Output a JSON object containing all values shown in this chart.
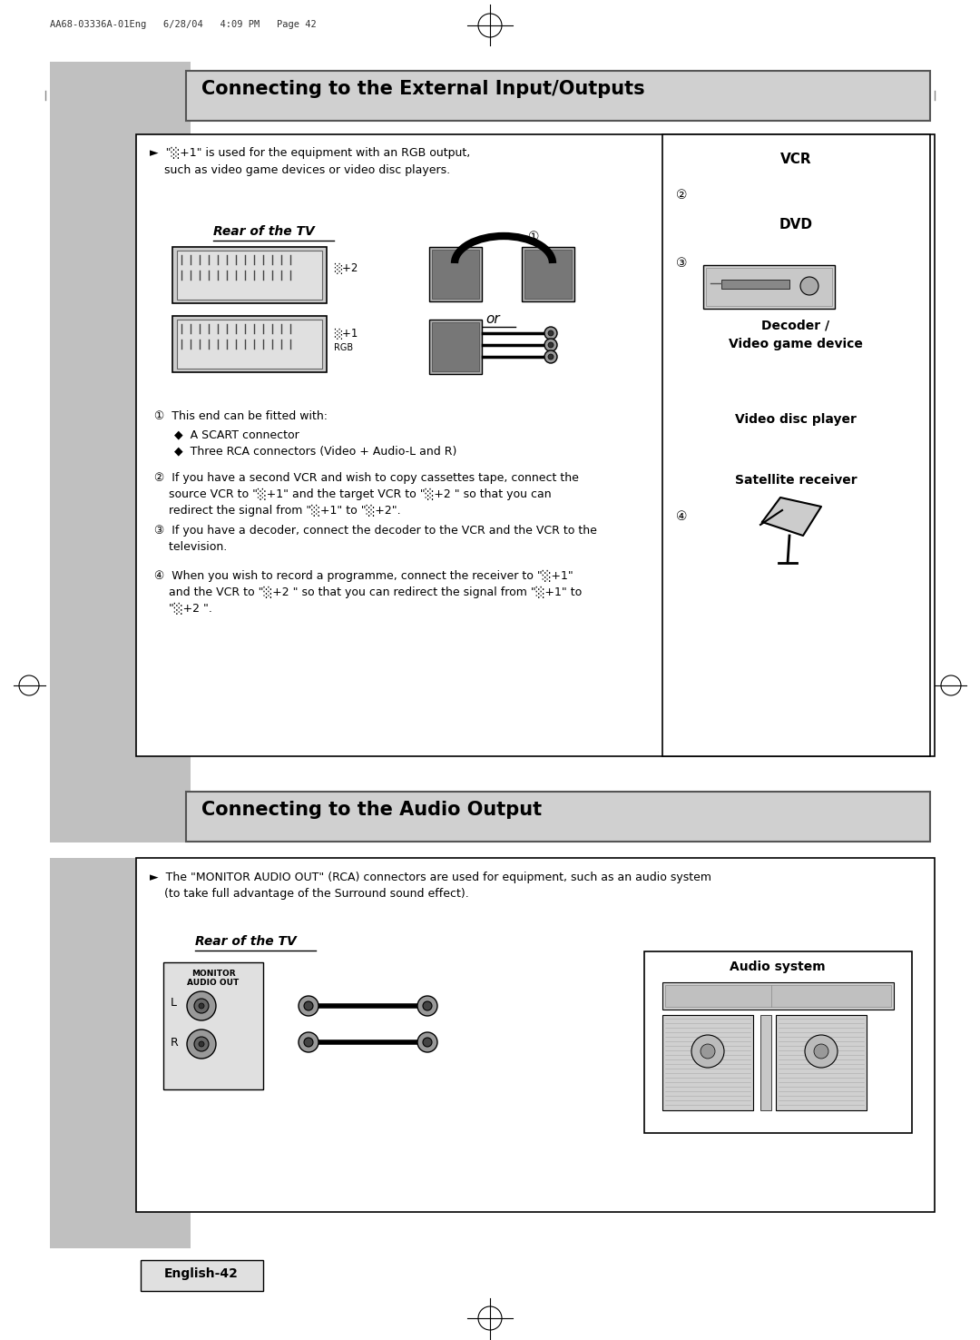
{
  "page_header": "AA68-03336A-01Eng   6/28/04   4:09 PM   Page 42",
  "title1": "Connecting to the External Input/Outputs",
  "title2": "Connecting to the Audio Output",
  "section1_note": "►  \"░+1\" is used for the equipment with an RGB output,\n    such as video game devices or video disc players.",
  "rear_tv_label": "Rear of the TV",
  "circle1": "①",
  "or_label": "or",
  "vcr_label": "VCR",
  "circle2": "②",
  "dvd_label": "DVD",
  "circle3": "③",
  "decoder_label": "Decoder /\nVideo game device",
  "video_disc_label": "Video disc player",
  "sat_label": "Satellite receiver",
  "circle4": "④",
  "note1_title": "①  This end can be fitted with:",
  "note1_bullet1": "◆  A SCART connector",
  "note1_bullet2": "◆  Three RCA connectors (Video + Audio-L and R)",
  "note2_line1": "②  If you have a second VCR and wish to copy cassettes tape, connect the",
  "note2_line2": "    source VCR to \"░+1\" and the target VCR to \"░+2 \" so that you can",
  "note2_line3": "    redirect the signal from \"░+1\" to \"░+2\".",
  "note3_line1": "③  If you have a decoder, connect the decoder to the VCR and the VCR to the",
  "note3_line2": "    television.",
  "note4_line1": "④  When you wish to record a programme, connect the receiver to \"░+1\"",
  "note4_line2": "    and the VCR to \"░+2 \" so that you can redirect the signal from \"░+1\" to",
  "note4_line3": "    \"░+2 \".",
  "section2_note1": "►  The \"MONITOR AUDIO OUT\" (RCA) connectors are used for equipment, such as an audio system",
  "section2_note2": "    (to take full advantage of the Surround sound effect).",
  "rear_tv_label2": "Rear of the TV",
  "audio_system_label": "Audio system",
  "monitor_line1": "MONITOR",
  "monitor_line2": "AUDIO OUT",
  "footer": "English-42",
  "bg_color": "#ffffff",
  "gray_color": "#c0c0c0",
  "title_bg": "#d0d0d0"
}
